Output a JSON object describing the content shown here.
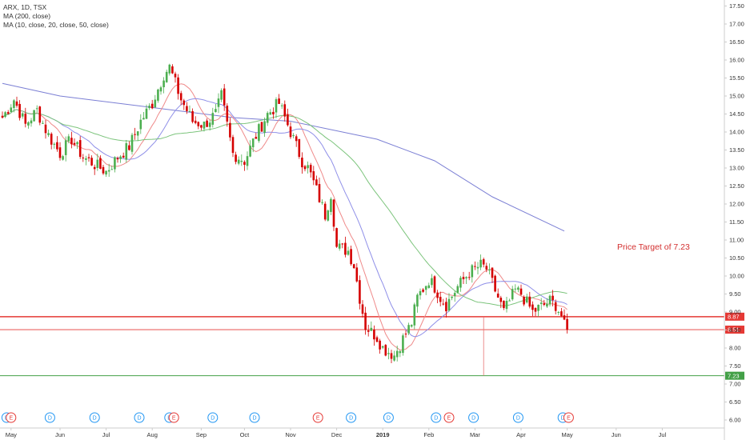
{
  "legend": {
    "symbol": "ARX, 1D, TSX",
    "ma200": "MA (200, close)",
    "ma_multi": "MA (10, close, 20, close, 50, close)"
  },
  "annotation": "Price Target of 7.23",
  "colors": {
    "up_candle": "#4caf50",
    "down_candle": "#d50000",
    "ma200": "#7b7fd4",
    "ma10": "#ef8a8a",
    "ma20": "#8f8fe8",
    "ma50": "#7cc47c",
    "level_red": "#e53935",
    "level_green": "#43a047",
    "dividend": "#2196f3",
    "earnings": "#e53935",
    "axis_border": "#cccccc"
  },
  "chart_data": {
    "type": "candlestick",
    "ylim": [
      5.9,
      17.6
    ],
    "y_ticks": [
      "6.00",
      "6.50",
      "7.00",
      "7.50",
      "8.00",
      "8.50",
      "9.00",
      "9.50",
      "10.00",
      "10.50",
      "11.00",
      "11.50",
      "12.00",
      "12.50",
      "13.00",
      "13.50",
      "14.00",
      "14.50",
      "15.00",
      "15.50",
      "16.00",
      "16.50",
      "17.00",
      "17.50"
    ],
    "x_labels": [
      "May",
      "Jun",
      "Jul",
      "Aug",
      "Sep",
      "Oct",
      "Nov",
      "Dec",
      "2019",
      "Feb",
      "Mar",
      "Apr",
      "May",
      "Jun",
      "Jul"
    ],
    "price_anchors": [
      [
        0,
        14.4
      ],
      [
        4,
        14.9
      ],
      [
        8,
        14.2
      ],
      [
        12,
        14.6
      ],
      [
        16,
        13.9
      ],
      [
        20,
        13.4
      ],
      [
        24,
        13.8
      ],
      [
        28,
        13.3
      ],
      [
        32,
        13.1
      ],
      [
        36,
        12.9
      ],
      [
        40,
        13.3
      ],
      [
        44,
        13.6
      ],
      [
        48,
        14.3
      ],
      [
        52,
        14.8
      ],
      [
        56,
        15.6
      ],
      [
        58,
        15.8
      ],
      [
        62,
        14.9
      ],
      [
        66,
        14.3
      ],
      [
        70,
        14.2
      ],
      [
        74,
        14.5
      ],
      [
        76,
        15.0
      ],
      [
        80,
        13.4
      ],
      [
        84,
        13.2
      ],
      [
        88,
        13.9
      ],
      [
        92,
        14.5
      ],
      [
        96,
        14.8
      ],
      [
        100,
        14.0
      ],
      [
        104,
        13.2
      ],
      [
        106,
        13.0
      ],
      [
        108,
        12.6
      ],
      [
        112,
        11.7
      ],
      [
        114,
        12.3
      ],
      [
        116,
        10.8
      ],
      [
        120,
        10.7
      ],
      [
        122,
        10.3
      ],
      [
        124,
        9.4
      ],
      [
        126,
        8.6
      ],
      [
        130,
        8.3
      ],
      [
        132,
        8.0
      ],
      [
        134,
        7.9
      ],
      [
        136,
        7.8
      ],
      [
        138,
        8.1
      ],
      [
        142,
        8.7
      ],
      [
        144,
        9.4
      ],
      [
        148,
        9.9
      ],
      [
        150,
        9.7
      ],
      [
        152,
        9.4
      ],
      [
        154,
        9.2
      ],
      [
        158,
        9.7
      ],
      [
        162,
        10.1
      ],
      [
        166,
        10.3
      ],
      [
        168,
        10.2
      ],
      [
        170,
        9.8
      ],
      [
        172,
        9.4
      ],
      [
        174,
        9.0
      ],
      [
        176,
        9.3
      ],
      [
        178,
        9.6
      ],
      [
        180,
        9.5
      ],
      [
        184,
        9.0
      ],
      [
        188,
        9.2
      ],
      [
        190,
        9.3
      ],
      [
        192,
        9.2
      ],
      [
        194,
        8.9
      ],
      [
        195,
        8.6
      ],
      [
        196,
        8.51
      ]
    ],
    "series": [
      {
        "name": "MA (200, close)",
        "points": [
          [
            0,
            15.35
          ],
          [
            20,
            15.0
          ],
          [
            50,
            14.7
          ],
          [
            80,
            14.4
          ],
          [
            100,
            14.3
          ],
          [
            130,
            13.8
          ],
          [
            150,
            13.2
          ],
          [
            170,
            12.2
          ],
          [
            195,
            11.25
          ]
        ]
      },
      {
        "name": "MA (10, close)",
        "period": 10
      },
      {
        "name": "MA (20, close)",
        "period": 20
      },
      {
        "name": "MA (50, close)",
        "period": 50
      }
    ],
    "levels": [
      {
        "value": 8.87,
        "label": "8.87",
        "color": "#e53935",
        "width": 1.5
      },
      {
        "value": 8.51,
        "label": "8.51",
        "color": "#e53935",
        "width": 0.8
      },
      {
        "value": 7.23,
        "label": "7.23",
        "color": "#43a047",
        "width": 1.0
      }
    ],
    "events": [
      {
        "day": 1.5,
        "type": "D"
      },
      {
        "day": 3,
        "type": "E"
      },
      {
        "day": 16.5,
        "type": "D"
      },
      {
        "day": 32,
        "type": "D"
      },
      {
        "day": 47.5,
        "type": "D"
      },
      {
        "day": 58,
        "type": "D"
      },
      {
        "day": 59.5,
        "type": "E"
      },
      {
        "day": 73,
        "type": "D"
      },
      {
        "day": 87.5,
        "type": "D"
      },
      {
        "day": 109.5,
        "type": "E"
      },
      {
        "day": 121,
        "type": "D"
      },
      {
        "day": 134,
        "type": "D"
      },
      {
        "day": 150.5,
        "type": "D"
      },
      {
        "day": 155,
        "type": "E"
      },
      {
        "day": 163.5,
        "type": "D"
      },
      {
        "day": 179,
        "type": "D"
      },
      {
        "day": 194.5,
        "type": "D"
      },
      {
        "day": 196.5,
        "type": "E"
      }
    ]
  }
}
